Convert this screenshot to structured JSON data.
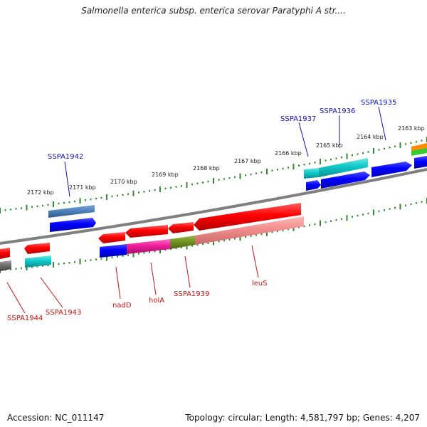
{
  "title": "Salmonella enterica subsp. enterica serovar Paratyphi A str....",
  "footer": {
    "accession": "Accession: NC_011147",
    "summary": "Topology: circular; Length: 4,581,797 bp; Genes: 4,207"
  },
  "kbp_labels": [
    "2172 kbp",
    "2171 kbp",
    "2170 kbp",
    "2169 kbp",
    "2168 kbp",
    "2167 kbp",
    "2166 kbp",
    "2165 kbp",
    "2164 kbp",
    "2163 kbp"
  ],
  "forward_genes": [
    "SSPA1942",
    "SSPA1937",
    "SSPA1936",
    "SSPA1935"
  ],
  "reverse_genes": [
    "SSPA1944",
    "SSPA1943",
    "nadD",
    "holA",
    "SSPA1939",
    "leuS"
  ],
  "colors": {
    "label_forward": "#1010c0",
    "label_reverse": "#cc1111",
    "backbone": "#808080",
    "ruler": "#2e8b2e"
  }
}
